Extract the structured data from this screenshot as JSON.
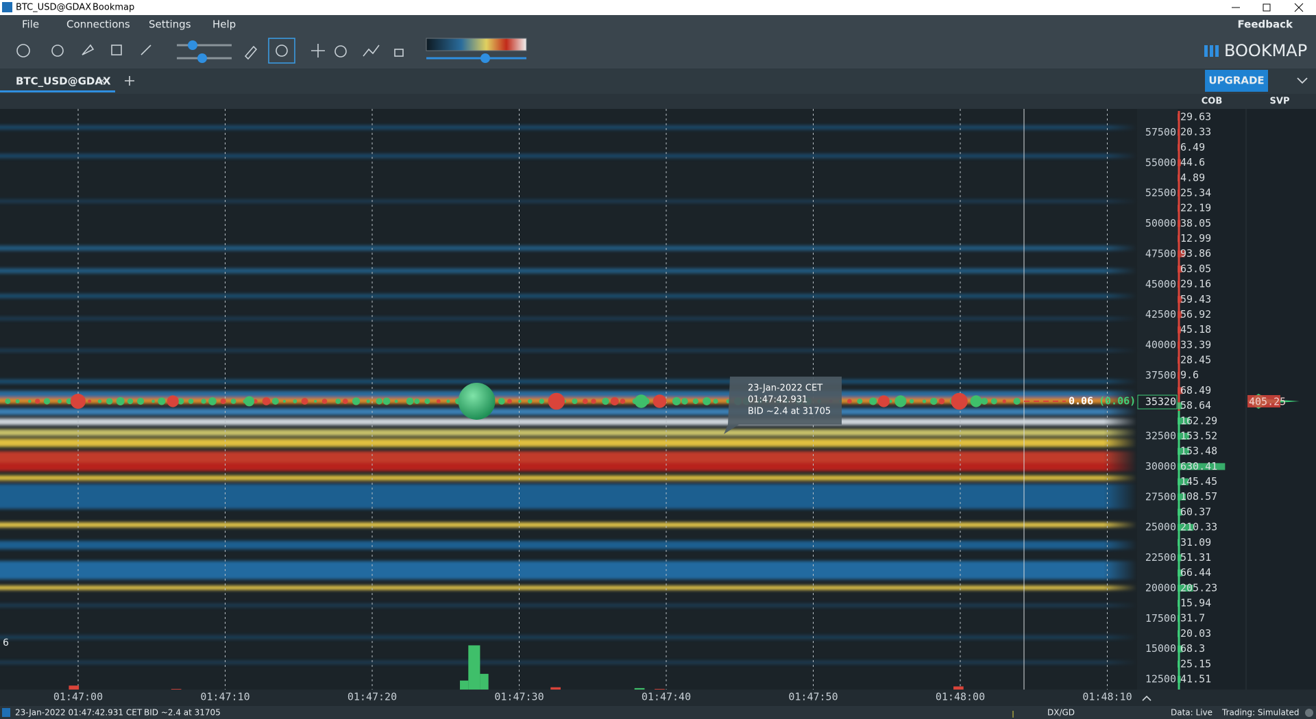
{
  "window": {
    "title": "BTC_USD@GDAX",
    "app": "Bookmap"
  },
  "menu": [
    "File",
    "Connections",
    "Settings",
    "Help"
  ],
  "feedback": "Feedback",
  "logo": "BOOKMAP",
  "tab": "BTC_USD@GDAX",
  "upgrade": "UPGRADE",
  "columns": [
    "COB",
    "SVP"
  ],
  "price_axis": [
    57500,
    55000,
    52500,
    50000,
    47500,
    45000,
    42500,
    40000,
    37500,
    32500,
    30000,
    27500,
    25000,
    22500,
    20000,
    17500,
    15000,
    12500
  ],
  "current_price": 35320,
  "cob": [
    29.63,
    20.33,
    6.49,
    44.6,
    4.89,
    25.34,
    22.19,
    38.05,
    12.99,
    93.86,
    63.05,
    29.16,
    59.43,
    56.92,
    45.18,
    33.39,
    28.45,
    9.6,
    68.49,
    58.64,
    162.29,
    153.52,
    153.48,
    630.41,
    145.45,
    108.57,
    60.37,
    210.33,
    31.09,
    51.31,
    66.44,
    205.23,
    15.94,
    31.7,
    20.03,
    68.3,
    25.15,
    41.51
  ],
  "svp_value": 405.25,
  "time_axis": [
    "01:47:00",
    "01:47:10",
    "01:47:20",
    "01:47:30",
    "01:47:40",
    "01:47:50",
    "01:48:00",
    "01:48:10"
  ],
  "tooltip": [
    "23-Jan-2022 CET",
    "01:47:42.931",
    "BID ~2.4 at 31705"
  ],
  "last_trade": {
    "size": 0.06,
    "total": "(0.06)"
  },
  "volume_axis": 6,
  "status": {
    "datetime": "23-Jan-2022 01:47:42.931 CET",
    "bid": "BID ~2.4 at 31705",
    "feed": "DX/GD",
    "data": "Data: Live",
    "trading": "Trading: Simulated"
  }
}
